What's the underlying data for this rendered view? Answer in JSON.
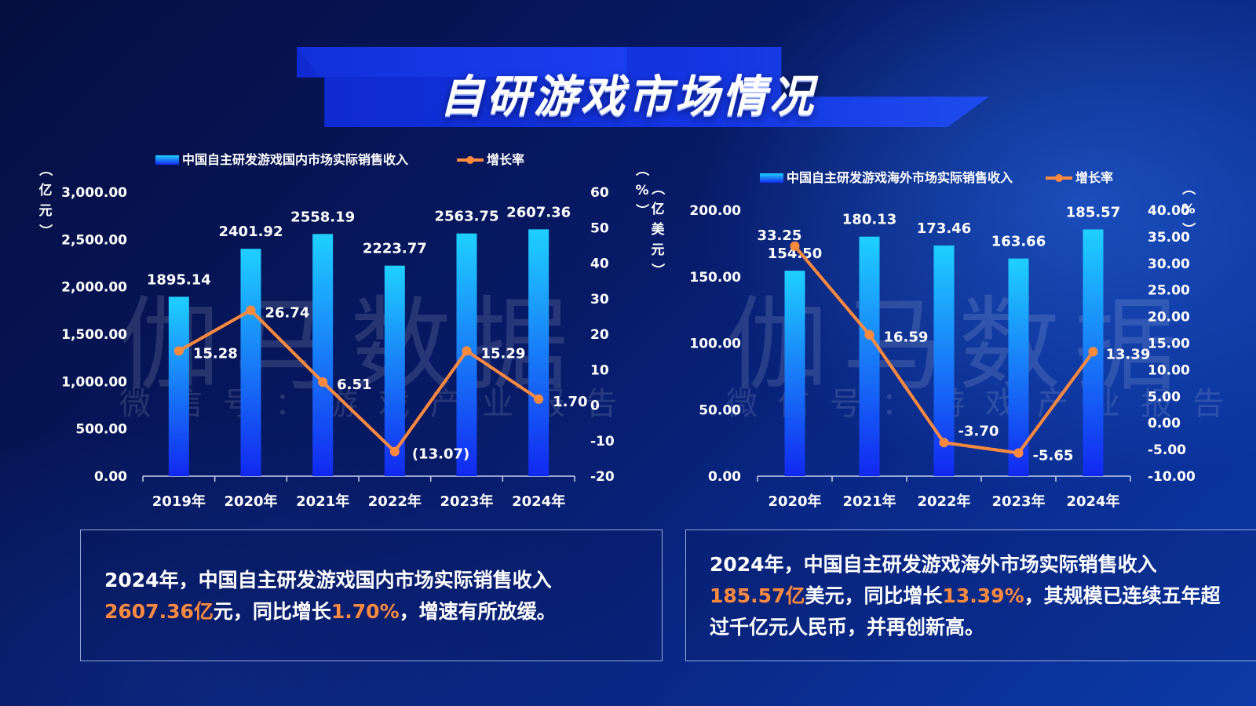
{
  "page": {
    "title": "自研游戏市场情况",
    "watermark_main": "伽马数据",
    "watermark_sub": "微信号：游戏产业报告"
  },
  "colors": {
    "bar_top": "#1fd0ff",
    "bar_bottom": "#1228f0",
    "line": "#ff8a3d",
    "highlight": "#ff8a3d"
  },
  "chart_data": [
    {
      "type": "bar",
      "legend": {
        "bar_label": "中国自主研发游戏国内市场实际销售收入",
        "line_label": "增长率",
        "position": "top"
      },
      "y_unit_label": "（亿元）",
      "y2_unit_label": "（%）",
      "categories": [
        "2019年",
        "2020年",
        "2021年",
        "2022年",
        "2023年",
        "2024年"
      ],
      "series": [
        {
          "name": "中国自主研发游戏国内市场实际销售收入",
          "values": [
            1895.14,
            2401.92,
            2558.19,
            2223.77,
            2563.75,
            2607.36
          ],
          "axis": "left"
        },
        {
          "name": "增长率",
          "type": "line",
          "values": [
            15.28,
            26.74,
            6.51,
            -13.07,
            15.29,
            1.7
          ],
          "axis": "right"
        }
      ],
      "bar_labels": [
        "1895.14",
        "2401.92",
        "2558.19",
        "2223.77",
        "2563.75",
        "2607.36"
      ],
      "line_labels": [
        "15.28",
        "26.74",
        "6.51",
        "(13.07)",
        "15.29",
        "1.70"
      ],
      "ylim": [
        0,
        3000
      ],
      "y_ticks": [
        "0.00",
        "500.00",
        "1,000.00",
        "1,500.00",
        "2,000.00",
        "2,500.00",
        "3,000.00"
      ],
      "y2lim": [
        -20,
        60
      ],
      "y2_ticks": [
        "-20",
        "-10",
        "0",
        "10",
        "20",
        "30",
        "40",
        "50",
        "60"
      ]
    },
    {
      "type": "bar",
      "legend": {
        "bar_label": "中国自主研发游戏海外市场实际销售收入",
        "line_label": "增长率",
        "position": "top"
      },
      "y_unit_label": "（亿美元）",
      "y2_unit_label": "（%）",
      "categories": [
        "2020年",
        "2021年",
        "2022年",
        "2023年",
        "2024年"
      ],
      "series": [
        {
          "name": "中国自主研发游戏海外市场实际销售收入",
          "values": [
            154.5,
            180.13,
            173.46,
            163.66,
            185.57
          ],
          "axis": "left"
        },
        {
          "name": "增长率",
          "type": "line",
          "values": [
            33.25,
            16.59,
            -3.7,
            -5.65,
            13.39
          ],
          "axis": "right"
        }
      ],
      "bar_labels": [
        "154.50",
        "180.13",
        "173.46",
        "163.66",
        "185.57"
      ],
      "line_labels": [
        "33.25",
        "16.59",
        "-3.70",
        "-5.65",
        "13.39"
      ],
      "ylim": [
        0,
        200
      ],
      "y_ticks": [
        "0.00",
        "50.00",
        "100.00",
        "150.00",
        "200.00"
      ],
      "y2lim": [
        -10,
        40
      ],
      "y2_ticks": [
        "-10.00",
        "-5.00",
        "0.00",
        "5.00",
        "10.00",
        "15.00",
        "20.00",
        "25.00",
        "30.00",
        "35.00",
        "40.00"
      ]
    }
  ],
  "summaries": [
    {
      "p1": "2024年，中国自主研发游戏国内市场实际销售收入",
      "hl1": "2607.36亿",
      "p2": "元，同比增长",
      "hl2": "1.70%",
      "p3": "，增速有所放缓。"
    },
    {
      "p1": "2024年，中国自主研发游戏海外市场实际销售收入",
      "hl1": "185.57亿",
      "p2": "美元，同比增长",
      "hl2": "13.39%",
      "p3": "，其规模已连续五年超过千亿元人民币，并再创新高。"
    }
  ]
}
